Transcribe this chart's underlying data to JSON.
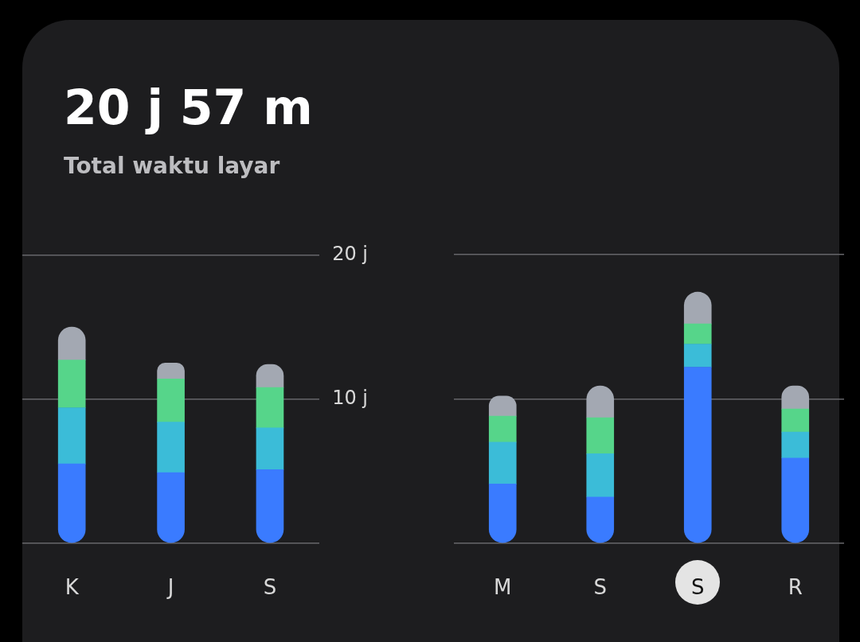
{
  "chart_data": [
    {
      "type": "bar",
      "title": "20 j 57 m",
      "subtitle": "Total waktu layar",
      "stacked": true,
      "categories": [
        "K",
        "J",
        "S"
      ],
      "series": [
        {
          "color": "#3a7bff",
          "values": [
            5.5,
            4.9,
            5.1
          ]
        },
        {
          "color": "#3bbcd8",
          "values": [
            3.9,
            3.5,
            2.9
          ]
        },
        {
          "color": "#56d58a",
          "values": [
            3.3,
            3.0,
            2.8
          ]
        },
        {
          "color": "#a3a8b2",
          "values": [
            2.3,
            1.1,
            1.6
          ]
        }
      ],
      "ylim": [
        0,
        20
      ],
      "yticks": [
        {
          "value": 0,
          "label": null
        },
        {
          "value": 10,
          "label": "10 j"
        },
        {
          "value": 20,
          "label": "20 j"
        }
      ],
      "grid": "y"
    },
    {
      "type": "bar",
      "stacked": true,
      "categories": [
        "M",
        "S",
        "S",
        "R"
      ],
      "series": [
        {
          "color": "#3a7bff",
          "values": [
            4.1,
            3.2,
            12.2,
            5.9
          ]
        },
        {
          "color": "#3bbcd8",
          "values": [
            2.9,
            3.0,
            1.6,
            1.8
          ]
        },
        {
          "color": "#56d58a",
          "values": [
            1.8,
            2.5,
            1.4,
            1.6
          ]
        },
        {
          "color": "#a3a8b2",
          "values": [
            1.4,
            2.2,
            2.2,
            1.6
          ]
        }
      ],
      "ylim": [
        0,
        20
      ],
      "yticks": [
        {
          "value": 0,
          "label": null
        },
        {
          "value": 10,
          "label": null
        },
        {
          "value": 20,
          "label": null
        }
      ],
      "grid": "y",
      "tick_labels": "x"
    }
  ]
}
